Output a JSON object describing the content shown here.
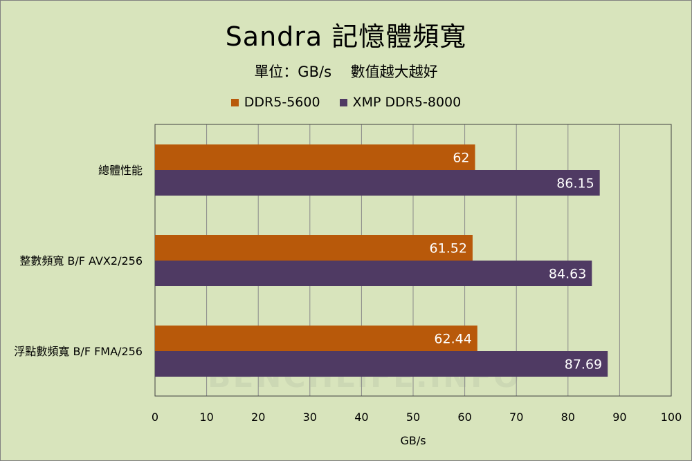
{
  "chart_data": {
    "type": "bar",
    "orientation": "horizontal",
    "title": "Sandra 記憶體頻寬",
    "subtitle": "單位：GB/s　 數值越大越好",
    "xlabel": "GB/s",
    "ylabel": "",
    "xlim": [
      0,
      100
    ],
    "xticks": [
      "0",
      "10",
      "20",
      "30",
      "40",
      "50",
      "60",
      "70",
      "80",
      "90",
      "100"
    ],
    "categories": [
      "總體性能",
      "整數頻寬 B/F AVX2/256",
      "浮點數頻寬 B/F FMA/256"
    ],
    "series": [
      {
        "name": "DDR5-5600",
        "color": "#b8590a",
        "values": [
          62,
          61.52,
          62.44
        ],
        "labels": [
          "62",
          "61.52",
          "62.44"
        ]
      },
      {
        "name": "XMP DDR5-8000",
        "color": "#4f3a63",
        "values": [
          86.15,
          84.63,
          87.69
        ],
        "labels": [
          "86.15",
          "84.63",
          "87.69"
        ]
      }
    ],
    "grid": true,
    "legend_position": "top"
  },
  "watermark": "BENCHLIFE.INFO"
}
